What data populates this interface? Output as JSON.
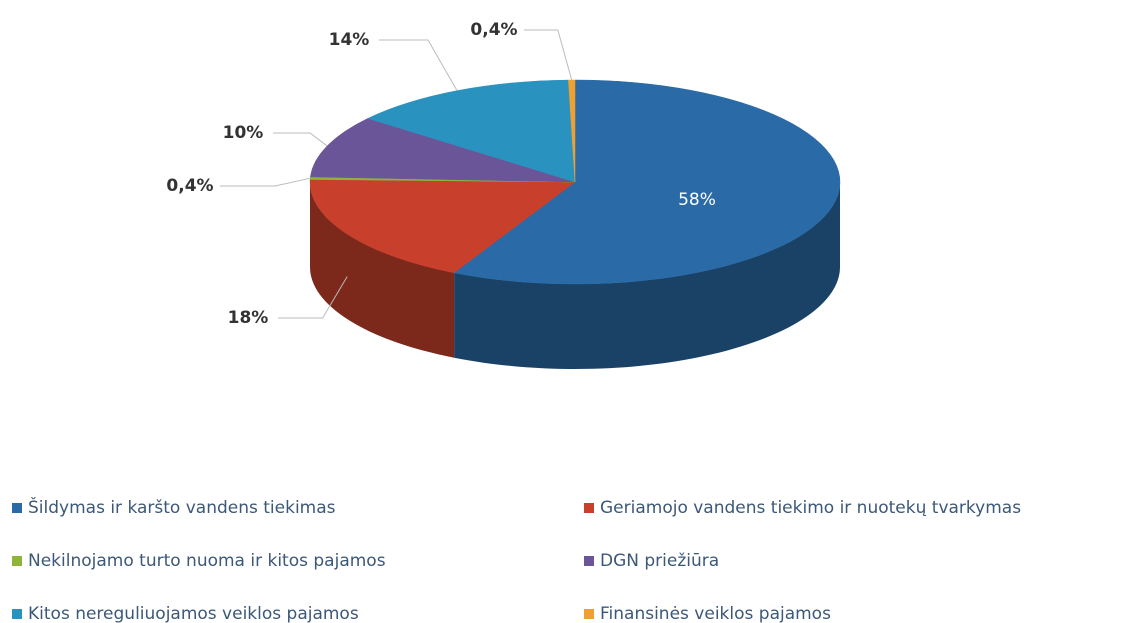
{
  "chart_data": {
    "type": "pie",
    "categories": [
      "Šildymas ir karšto vandens tiekimas",
      "Geriamojo vandens tiekimo ir nuotekų tvarkymas",
      "Nekilnojamo turto nuoma ir kitos pajamos",
      "DGN priežiūra",
      "Kitos nereguliuojamos veiklos pajamos",
      "Finansinės veiklos pajamos"
    ],
    "values": [
      58,
      18,
      0.4,
      10,
      14,
      0.4
    ],
    "value_labels": [
      "58%",
      "18%",
      "0,4%",
      "10%",
      "14%",
      "0,4%"
    ],
    "colors": [
      "#2a6aa6",
      "#c8402c",
      "#8fb43a",
      "#6a5598",
      "#2a92bf",
      "#f0a030"
    ],
    "legend": "bottom"
  }
}
